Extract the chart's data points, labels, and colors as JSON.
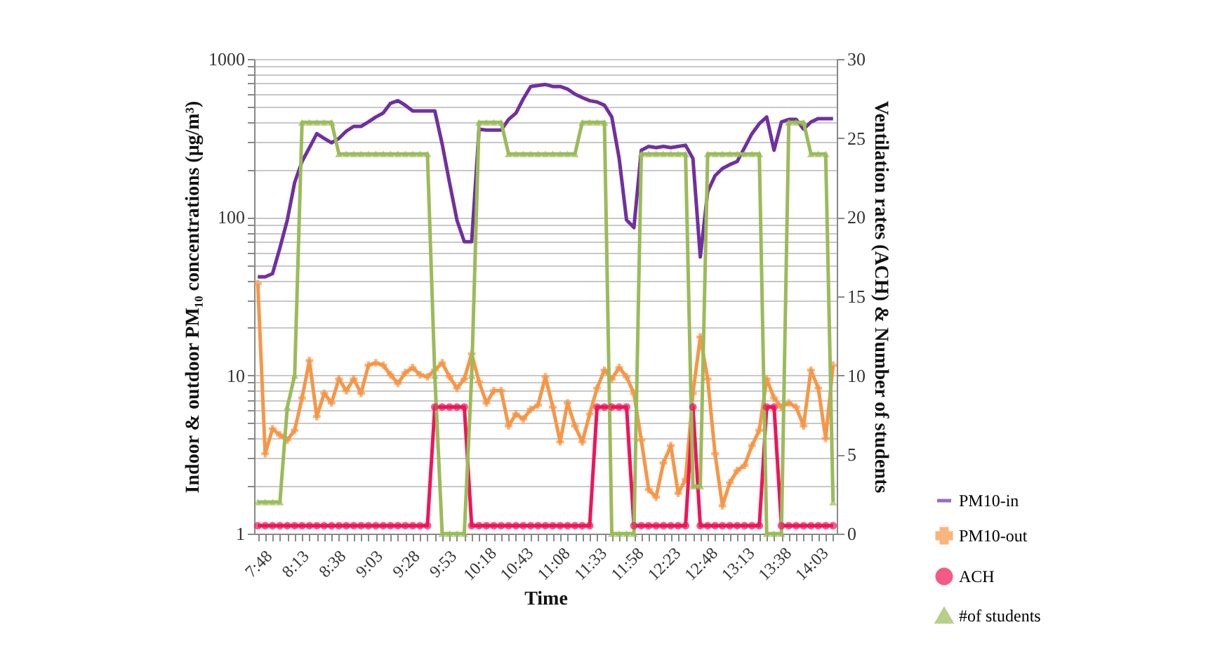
{
  "chart_data": {
    "type": "line",
    "xlabel": "Time",
    "ylabel": "Indoor & outdoor PM₁₀ concentrations (μg/m³)",
    "y2label": "Ventilation rates (ACH) & Number of students",
    "categories": [
      "7:48",
      null,
      null,
      null,
      null,
      "8:13",
      null,
      null,
      null,
      null,
      "8:38",
      null,
      null,
      null,
      null,
      "9:03",
      null,
      null,
      null,
      null,
      "9:28",
      null,
      null,
      null,
      null,
      "9:53",
      null,
      null,
      null,
      null,
      "10:18",
      null,
      null,
      null,
      null,
      "10:43",
      null,
      null,
      null,
      null,
      "11:08",
      null,
      null,
      null,
      null,
      "11:33",
      null,
      null,
      null,
      null,
      "11:58",
      null,
      null,
      null,
      null,
      "12:23",
      null,
      null,
      null,
      null,
      "12:48",
      null,
      null,
      null,
      null,
      "13:13",
      null,
      null,
      null,
      null,
      "13:38",
      null,
      null,
      null,
      null,
      "14:03",
      null,
      null,
      null
    ],
    "log": "y",
    "ylim": [
      1,
      1000
    ],
    "yticks": [
      1,
      {
        "value": 2,
        "label": null
      },
      {
        "value": 3,
        "label": null
      },
      {
        "value": 4,
        "label": null
      },
      {
        "value": 5,
        "label": null
      },
      {
        "value": 6,
        "label": null
      },
      {
        "value": 7,
        "label": null
      },
      {
        "value": 8,
        "label": null
      },
      {
        "value": 9,
        "label": null
      },
      10,
      {
        "value": 20,
        "label": null
      },
      {
        "value": 30,
        "label": null
      },
      {
        "value": 40,
        "label": null
      },
      {
        "value": 50,
        "label": null
      },
      {
        "value": 60,
        "label": null
      },
      {
        "value": 70,
        "label": null
      },
      {
        "value": 80,
        "label": null
      },
      {
        "value": 90,
        "label": null
      },
      100,
      {
        "value": 200,
        "label": null
      },
      {
        "value": 300,
        "label": null
      },
      {
        "value": 400,
        "label": null
      },
      {
        "value": 500,
        "label": null
      },
      {
        "value": 600,
        "label": null
      },
      {
        "value": 700,
        "label": null
      },
      {
        "value": 800,
        "label": null
      },
      {
        "value": 900,
        "label": null
      },
      1000
    ],
    "y2lim": [
      0,
      30
    ],
    "y2ticks": [
      0,
      5,
      10,
      15,
      20,
      25,
      30
    ],
    "grid": "y",
    "legend": "bottom right",
    "series": [
      {
        "name": "PM10-in",
        "color": "#7030a0",
        "marker": "none",
        "values": [
          42,
          42,
          44,
          64,
          96,
          166,
          225,
          275,
          337,
          315,
          295,
          315,
          350,
          375,
          375,
          400,
          430,
          455,
          525,
          545,
          510,
          470,
          470,
          470,
          470,
          290,
          165,
          96,
          70,
          70,
          360,
          355,
          355,
          355,
          415,
          455,
          560,
          670,
          680,
          690,
          670,
          670,
          645,
          600,
          570,
          545,
          535,
          510,
          430,
          235,
          96,
          86,
          265,
          280,
          275,
          280,
          275,
          280,
          285,
          235,
          56,
          145,
          183,
          203,
          215,
          225,
          275,
          337,
          390,
          430,
          265,
          400,
          415,
          415,
          360,
          400,
          420,
          420,
          420
        ]
      },
      {
        "name": "PM10-out",
        "color": "#f79646",
        "marker": "cross",
        "values": [
          38,
          3.2,
          4.6,
          4.2,
          3.9,
          4.5,
          7.2,
          12.4,
          5.5,
          7.7,
          6.7,
          9.5,
          8.0,
          9.5,
          7.7,
          11.6,
          12,
          11.6,
          10.1,
          8.9,
          10.4,
          11.2,
          10.1,
          9.8,
          10.8,
          12,
          9.8,
          8.3,
          9.5,
          13.7,
          9.1,
          6.7,
          8.0,
          8.0,
          4.8,
          5.7,
          5.3,
          6.1,
          6.5,
          9.8,
          6.3,
          3.8,
          6.7,
          4.8,
          3.8,
          5.7,
          8.3,
          10.8,
          9.5,
          11.2,
          9.8,
          7.7,
          3.9,
          1.9,
          1.7,
          2.8,
          3.6,
          1.8,
          2.2,
          7.7,
          17.5,
          9.5,
          3.2,
          1.5,
          2.1,
          2.5,
          2.7,
          3.6,
          4.5,
          9.5,
          7.2,
          6.3,
          6.7,
          6.3,
          4.8,
          10.8,
          8.3,
          4.0,
          11.6
        ]
      },
      {
        "name": "ACH",
        "color": "#f0145a",
        "marker": "circle",
        "axis": "y2",
        "values": [
          0.5,
          0.5,
          0.5,
          0.5,
          0.5,
          0.5,
          0.5,
          0.5,
          0.5,
          0.5,
          0.5,
          0.5,
          0.5,
          0.5,
          0.5,
          0.5,
          0.5,
          0.5,
          0.5,
          0.5,
          0.5,
          0.5,
          0.5,
          0.5,
          8,
          8,
          8,
          8,
          8,
          0.5,
          0.5,
          0.5,
          0.5,
          0.5,
          0.5,
          0.5,
          0.5,
          0.5,
          0.5,
          0.5,
          0.5,
          0.5,
          0.5,
          0.5,
          0.5,
          0.5,
          8,
          8,
          8,
          8,
          8,
          0.5,
          0.5,
          0.5,
          0.5,
          0.5,
          0.5,
          0.5,
          0.5,
          8,
          0.5,
          0.5,
          0.5,
          0.5,
          0.5,
          0.5,
          0.5,
          0.5,
          0.5,
          8,
          8,
          0.5,
          0.5,
          0.5,
          0.5,
          0.5,
          0.5,
          0.5,
          0.5
        ]
      },
      {
        "name": "#of students",
        "color": "#9bbb59",
        "marker": "triangle",
        "axis": "y2",
        "values": [
          2,
          2,
          2,
          2,
          8,
          10,
          26,
          26,
          26,
          26,
          26,
          24,
          24,
          24,
          24,
          24,
          24,
          24,
          24,
          24,
          24,
          24,
          24,
          24,
          10,
          0,
          0,
          0,
          0,
          10,
          26,
          26,
          26,
          26,
          24,
          24,
          24,
          24,
          24,
          24,
          24,
          24,
          24,
          24,
          26,
          26,
          26,
          26,
          0,
          0,
          0,
          0,
          24,
          24,
          24,
          24,
          24,
          24,
          24,
          3,
          3,
          24,
          24,
          24,
          24,
          24,
          24,
          24,
          24,
          0,
          0,
          0,
          26,
          26,
          26,
          24,
          24,
          24,
          2
        ]
      }
    ]
  }
}
